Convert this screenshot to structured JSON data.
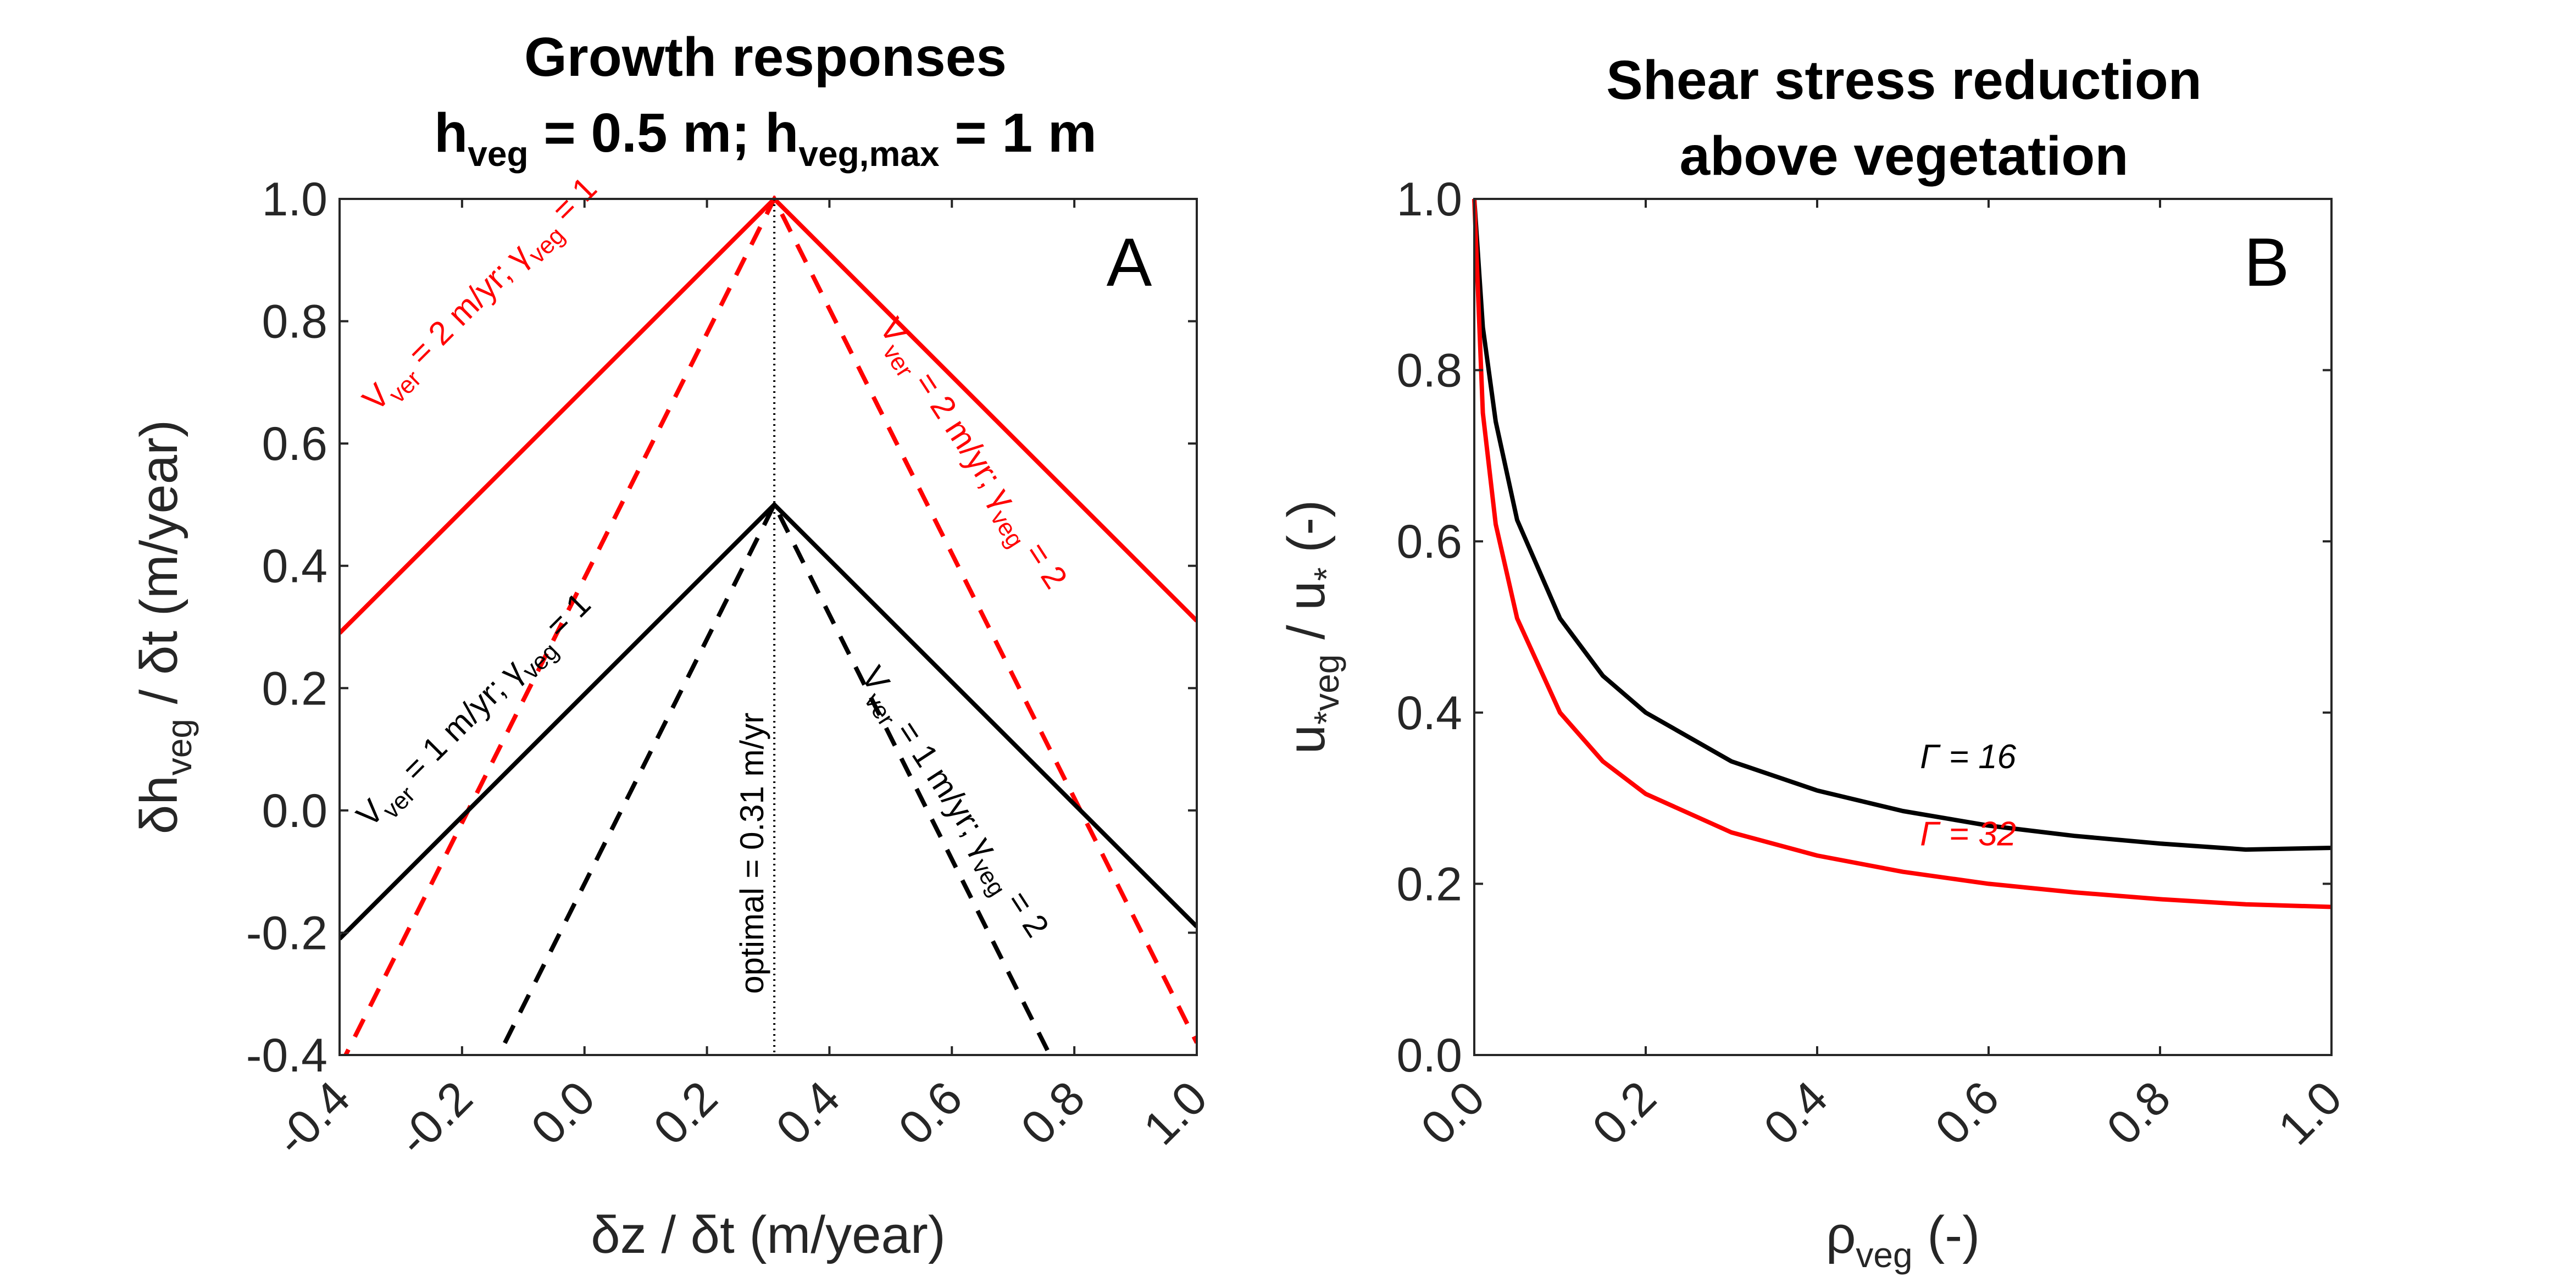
{
  "colors": {
    "red": "#ff0000",
    "black": "#000000",
    "axis": "#262626"
  },
  "chart_data": [
    {
      "type": "line",
      "panel_letter": "A",
      "title_line1": "Growth responses",
      "title_line2": {
        "h": "h",
        "sub_veg": "veg",
        "mid": " = 0.5 m; h",
        "sub_vegmax": "veg,max",
        "end": " = 1 m"
      },
      "xlabel": "δz / δt (m/year)",
      "ylabel": {
        "pre": "δh",
        "sub": "veg",
        "post": " / δt (m/year)"
      },
      "xlim": [
        -0.4,
        1.0
      ],
      "ylim": [
        -0.4,
        1.0
      ],
      "xticks": [
        "-0.4",
        "-0.2",
        "0.0",
        "0.2",
        "0.4",
        "0.6",
        "0.8",
        "1.0"
      ],
      "yticks": [
        "-0.4",
        "-0.2",
        "0.0",
        "0.2",
        "0.4",
        "0.6",
        "0.8",
        "1.0"
      ],
      "series": [
        {
          "color": "red",
          "style": "solid",
          "x": [
            -0.4,
            0.31,
            1.0
          ],
          "y": [
            0.29,
            1.0,
            0.31
          ]
        },
        {
          "color": "red",
          "style": "dashed",
          "x": [
            -0.4,
            0.31,
            1.0
          ],
          "y": [
            -0.42,
            1.0,
            -0.38
          ]
        },
        {
          "color": "black",
          "style": "solid",
          "x": [
            -0.4,
            0.31,
            1.0
          ],
          "y": [
            -0.21,
            0.5,
            -0.19
          ]
        },
        {
          "color": "black",
          "style": "dashed",
          "x": [
            -0.18,
            0.31,
            0.77
          ],
          "y": [
            -0.48,
            0.5,
            -0.42
          ]
        }
      ],
      "optimal": {
        "x": 0.31,
        "label": "optimal = 0.31 m/yr"
      },
      "annotations": [
        {
          "color": "red",
          "x": -0.34,
          "y": 0.65,
          "angle": -45,
          "parts": [
            "V",
            "ver",
            " = 2 m/yr; γ",
            "veg",
            " = 1"
          ]
        },
        {
          "color": "red",
          "x": 0.48,
          "y": 0.79,
          "angle": 57,
          "parts": [
            "V",
            "ver",
            " = 2 m/yr; γ",
            "veg",
            " = 2"
          ]
        },
        {
          "color": "black",
          "x": -0.35,
          "y": -0.03,
          "angle": -45,
          "parts": [
            "V",
            "ver",
            " = 1 m/yr; γ",
            "veg",
            " = 1"
          ]
        },
        {
          "color": "black",
          "x": 0.45,
          "y": 0.22,
          "angle": 57,
          "parts": [
            "V",
            "ver",
            " = 1 m/yr; γ",
            "veg",
            " = 2"
          ]
        }
      ]
    },
    {
      "type": "line",
      "panel_letter": "B",
      "title_line1": "Shear stress reduction",
      "title_line2": "above vegetation",
      "xlabel": {
        "pre": "ρ",
        "sub": "veg",
        "post": " (-)"
      },
      "ylabel": {
        "pre": "u",
        "sub": "*veg",
        "mid": " / u",
        "sub2": "*",
        "post": " (-)"
      },
      "xlim": [
        0,
        1
      ],
      "ylim": [
        0,
        1
      ],
      "xticks": [
        "0.0",
        "0.2",
        "0.4",
        "0.6",
        "0.8",
        "1.0"
      ],
      "yticks": [
        "0.0",
        "0.2",
        "0.4",
        "0.6",
        "0.8",
        "1.0"
      ],
      "series": [
        {
          "name": "Γ = 16",
          "color": "black",
          "gamma": 16,
          "x": [
            0,
            0.01,
            0.025,
            0.05,
            0.1,
            0.15,
            0.2,
            0.3,
            0.4,
            0.5,
            0.6,
            0.7,
            0.8,
            0.9,
            1.0
          ],
          "y": [
            1.0,
            0.85,
            0.74,
            0.625,
            0.51,
            0.443,
            0.4,
            0.343,
            0.309,
            0.285,
            0.268,
            0.256,
            0.247,
            0.24,
            0.242
          ]
        },
        {
          "name": "Γ = 32",
          "color": "red",
          "gamma": 32,
          "x": [
            0,
            0.01,
            0.025,
            0.05,
            0.1,
            0.15,
            0.2,
            0.3,
            0.4,
            0.5,
            0.6,
            0.7,
            0.8,
            0.9,
            1.0
          ],
          "y": [
            1.0,
            0.75,
            0.62,
            0.51,
            0.4,
            0.343,
            0.305,
            0.26,
            0.233,
            0.214,
            0.2,
            0.19,
            0.182,
            0.176,
            0.173
          ]
        }
      ],
      "labels": [
        {
          "text": "Γ = 16",
          "color": "black",
          "x": 0.52,
          "y": 0.335
        },
        {
          "text": "Γ = 32",
          "color": "red",
          "x": 0.52,
          "y": 0.245
        }
      ]
    }
  ]
}
